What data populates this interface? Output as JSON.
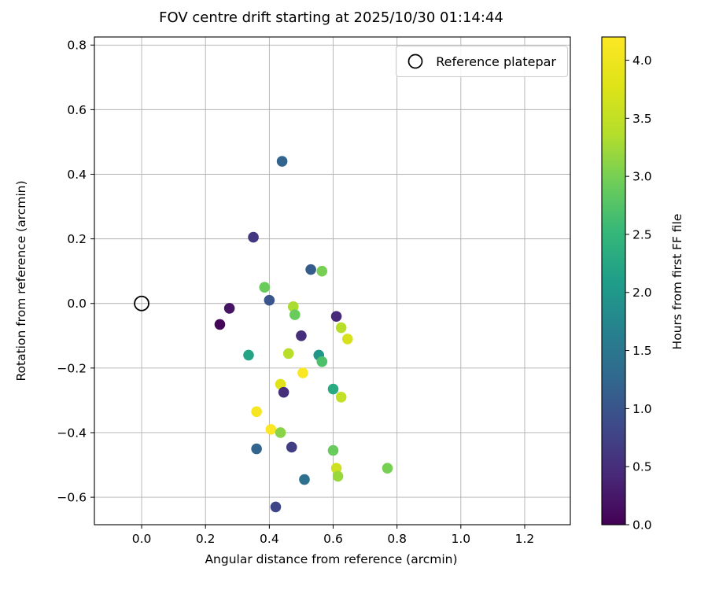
{
  "legend": {
    "label": "Reference platepar"
  },
  "colorbar": {
    "label": "Hours from first FF file",
    "vmin": 0.0,
    "vmax": 4.2,
    "ticks": [
      0.0,
      0.5,
      1.0,
      1.5,
      2.0,
      2.5,
      3.0,
      3.5,
      4.0
    ],
    "colormap": "viridis",
    "stops": [
      "#440154",
      "#482878",
      "#3e4989",
      "#31688e",
      "#26828e",
      "#1f9e89",
      "#35b779",
      "#6dcd59",
      "#b4de2c",
      "#dfe318",
      "#fde725"
    ]
  },
  "chart_data": {
    "type": "scatter",
    "title": "FOV centre drift starting at 2025/10/30 01:14:44",
    "xlabel": "Angular distance from reference (arcmin)",
    "ylabel": "Rotation from reference (arcmin)",
    "color_label": "Hours from first FF file",
    "xlim": [
      -0.148,
      1.343
    ],
    "ylim": [
      -0.685,
      0.825
    ],
    "xticks": [
      0.0,
      0.2,
      0.4,
      0.6,
      0.8,
      1.0,
      1.2
    ],
    "yticks": [
      -0.6,
      -0.4,
      -0.2,
      0.0,
      0.2,
      0.4,
      0.6,
      0.8
    ],
    "grid": true,
    "legend_entries": [
      "Reference platepar"
    ],
    "reference_point": {
      "x": 0.0,
      "y": 0.0
    },
    "points": [
      {
        "x": 0.44,
        "y": 0.44,
        "hours": 1.2
      },
      {
        "x": 0.35,
        "y": 0.205,
        "hours": 0.6
      },
      {
        "x": 0.53,
        "y": 0.105,
        "hours": 1.1
      },
      {
        "x": 0.565,
        "y": 0.1,
        "hours": 3.0
      },
      {
        "x": 0.385,
        "y": 0.05,
        "hours": 2.9
      },
      {
        "x": 0.4,
        "y": 0.01,
        "hours": 1.0
      },
      {
        "x": 0.475,
        "y": -0.01,
        "hours": 3.3
      },
      {
        "x": 0.48,
        "y": -0.035,
        "hours": 2.9
      },
      {
        "x": 0.275,
        "y": -0.015,
        "hours": 0.2
      },
      {
        "x": 0.245,
        "y": -0.065,
        "hours": 0.05
      },
      {
        "x": 0.61,
        "y": -0.04,
        "hours": 0.45
      },
      {
        "x": 0.625,
        "y": -0.075,
        "hours": 3.4
      },
      {
        "x": 0.5,
        "y": -0.1,
        "hours": 0.5
      },
      {
        "x": 0.645,
        "y": -0.11,
        "hours": 3.7
      },
      {
        "x": 0.335,
        "y": -0.16,
        "hours": 2.2
      },
      {
        "x": 0.46,
        "y": -0.155,
        "hours": 3.4
      },
      {
        "x": 0.555,
        "y": -0.16,
        "hours": 2.0
      },
      {
        "x": 0.565,
        "y": -0.18,
        "hours": 2.7
      },
      {
        "x": 0.505,
        "y": -0.215,
        "hours": 4.15
      },
      {
        "x": 0.435,
        "y": -0.25,
        "hours": 3.8
      },
      {
        "x": 0.445,
        "y": -0.275,
        "hours": 0.5
      },
      {
        "x": 0.6,
        "y": -0.265,
        "hours": 2.3
      },
      {
        "x": 0.625,
        "y": -0.29,
        "hours": 3.5
      },
      {
        "x": 0.36,
        "y": -0.335,
        "hours": 4.1
      },
      {
        "x": 0.405,
        "y": -0.39,
        "hours": 4.2
      },
      {
        "x": 0.435,
        "y": -0.4,
        "hours": 3.1
      },
      {
        "x": 0.36,
        "y": -0.45,
        "hours": 1.2
      },
      {
        "x": 0.47,
        "y": -0.445,
        "hours": 0.7
      },
      {
        "x": 0.6,
        "y": -0.455,
        "hours": 2.9
      },
      {
        "x": 0.51,
        "y": -0.545,
        "hours": 1.4
      },
      {
        "x": 0.61,
        "y": -0.51,
        "hours": 3.6
      },
      {
        "x": 0.615,
        "y": -0.535,
        "hours": 3.2
      },
      {
        "x": 0.77,
        "y": -0.51,
        "hours": 3.0
      },
      {
        "x": 0.42,
        "y": -0.63,
        "hours": 0.8
      }
    ]
  }
}
